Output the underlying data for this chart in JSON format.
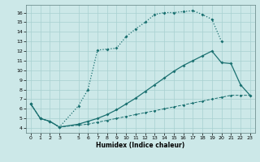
{
  "xlabel": "Humidex (Indice chaleur)",
  "bg_color": "#cce8e8",
  "line_color": "#1a7070",
  "xlim": [
    -0.5,
    23.5
  ],
  "ylim": [
    3.5,
    16.8
  ],
  "xticks": [
    0,
    1,
    2,
    3,
    5,
    6,
    7,
    8,
    9,
    10,
    11,
    12,
    13,
    14,
    15,
    16,
    17,
    18,
    19,
    20,
    21,
    22,
    23
  ],
  "yticks": [
    4,
    5,
    6,
    7,
    8,
    9,
    10,
    11,
    12,
    13,
    14,
    15,
    16
  ],
  "curve1_x": [
    0,
    1,
    2,
    3,
    5,
    6,
    7,
    8,
    9,
    10,
    11,
    12,
    13,
    14,
    15,
    16,
    17,
    18,
    19,
    20
  ],
  "curve1_y": [
    6.5,
    5.0,
    4.7,
    4.1,
    6.3,
    8.0,
    12.1,
    12.2,
    12.3,
    13.5,
    14.3,
    15.0,
    15.8,
    16.0,
    16.0,
    16.1,
    16.2,
    15.8,
    15.3,
    13.0
  ],
  "curve2_x": [
    0,
    1,
    2,
    3,
    5,
    6,
    7,
    8,
    9,
    10,
    11,
    12,
    13,
    14,
    15,
    16,
    17,
    18,
    19,
    20,
    21,
    22,
    23
  ],
  "curve2_y": [
    6.5,
    5.0,
    4.7,
    4.1,
    4.4,
    4.7,
    5.0,
    5.4,
    5.9,
    6.5,
    7.1,
    7.8,
    8.5,
    9.2,
    9.9,
    10.5,
    11.0,
    11.5,
    12.0,
    10.8,
    10.7,
    8.5,
    7.4
  ],
  "curve3_x": [
    0,
    1,
    2,
    3,
    5,
    6,
    7,
    8,
    9,
    10,
    11,
    12,
    13,
    14,
    15,
    16,
    17,
    18,
    19,
    20,
    21,
    22,
    23
  ],
  "curve3_y": [
    6.5,
    5.0,
    4.7,
    4.1,
    4.3,
    4.4,
    4.6,
    4.8,
    5.0,
    5.2,
    5.4,
    5.6,
    5.8,
    6.0,
    6.2,
    6.4,
    6.6,
    6.8,
    7.0,
    7.2,
    7.4,
    7.4,
    7.4
  ]
}
